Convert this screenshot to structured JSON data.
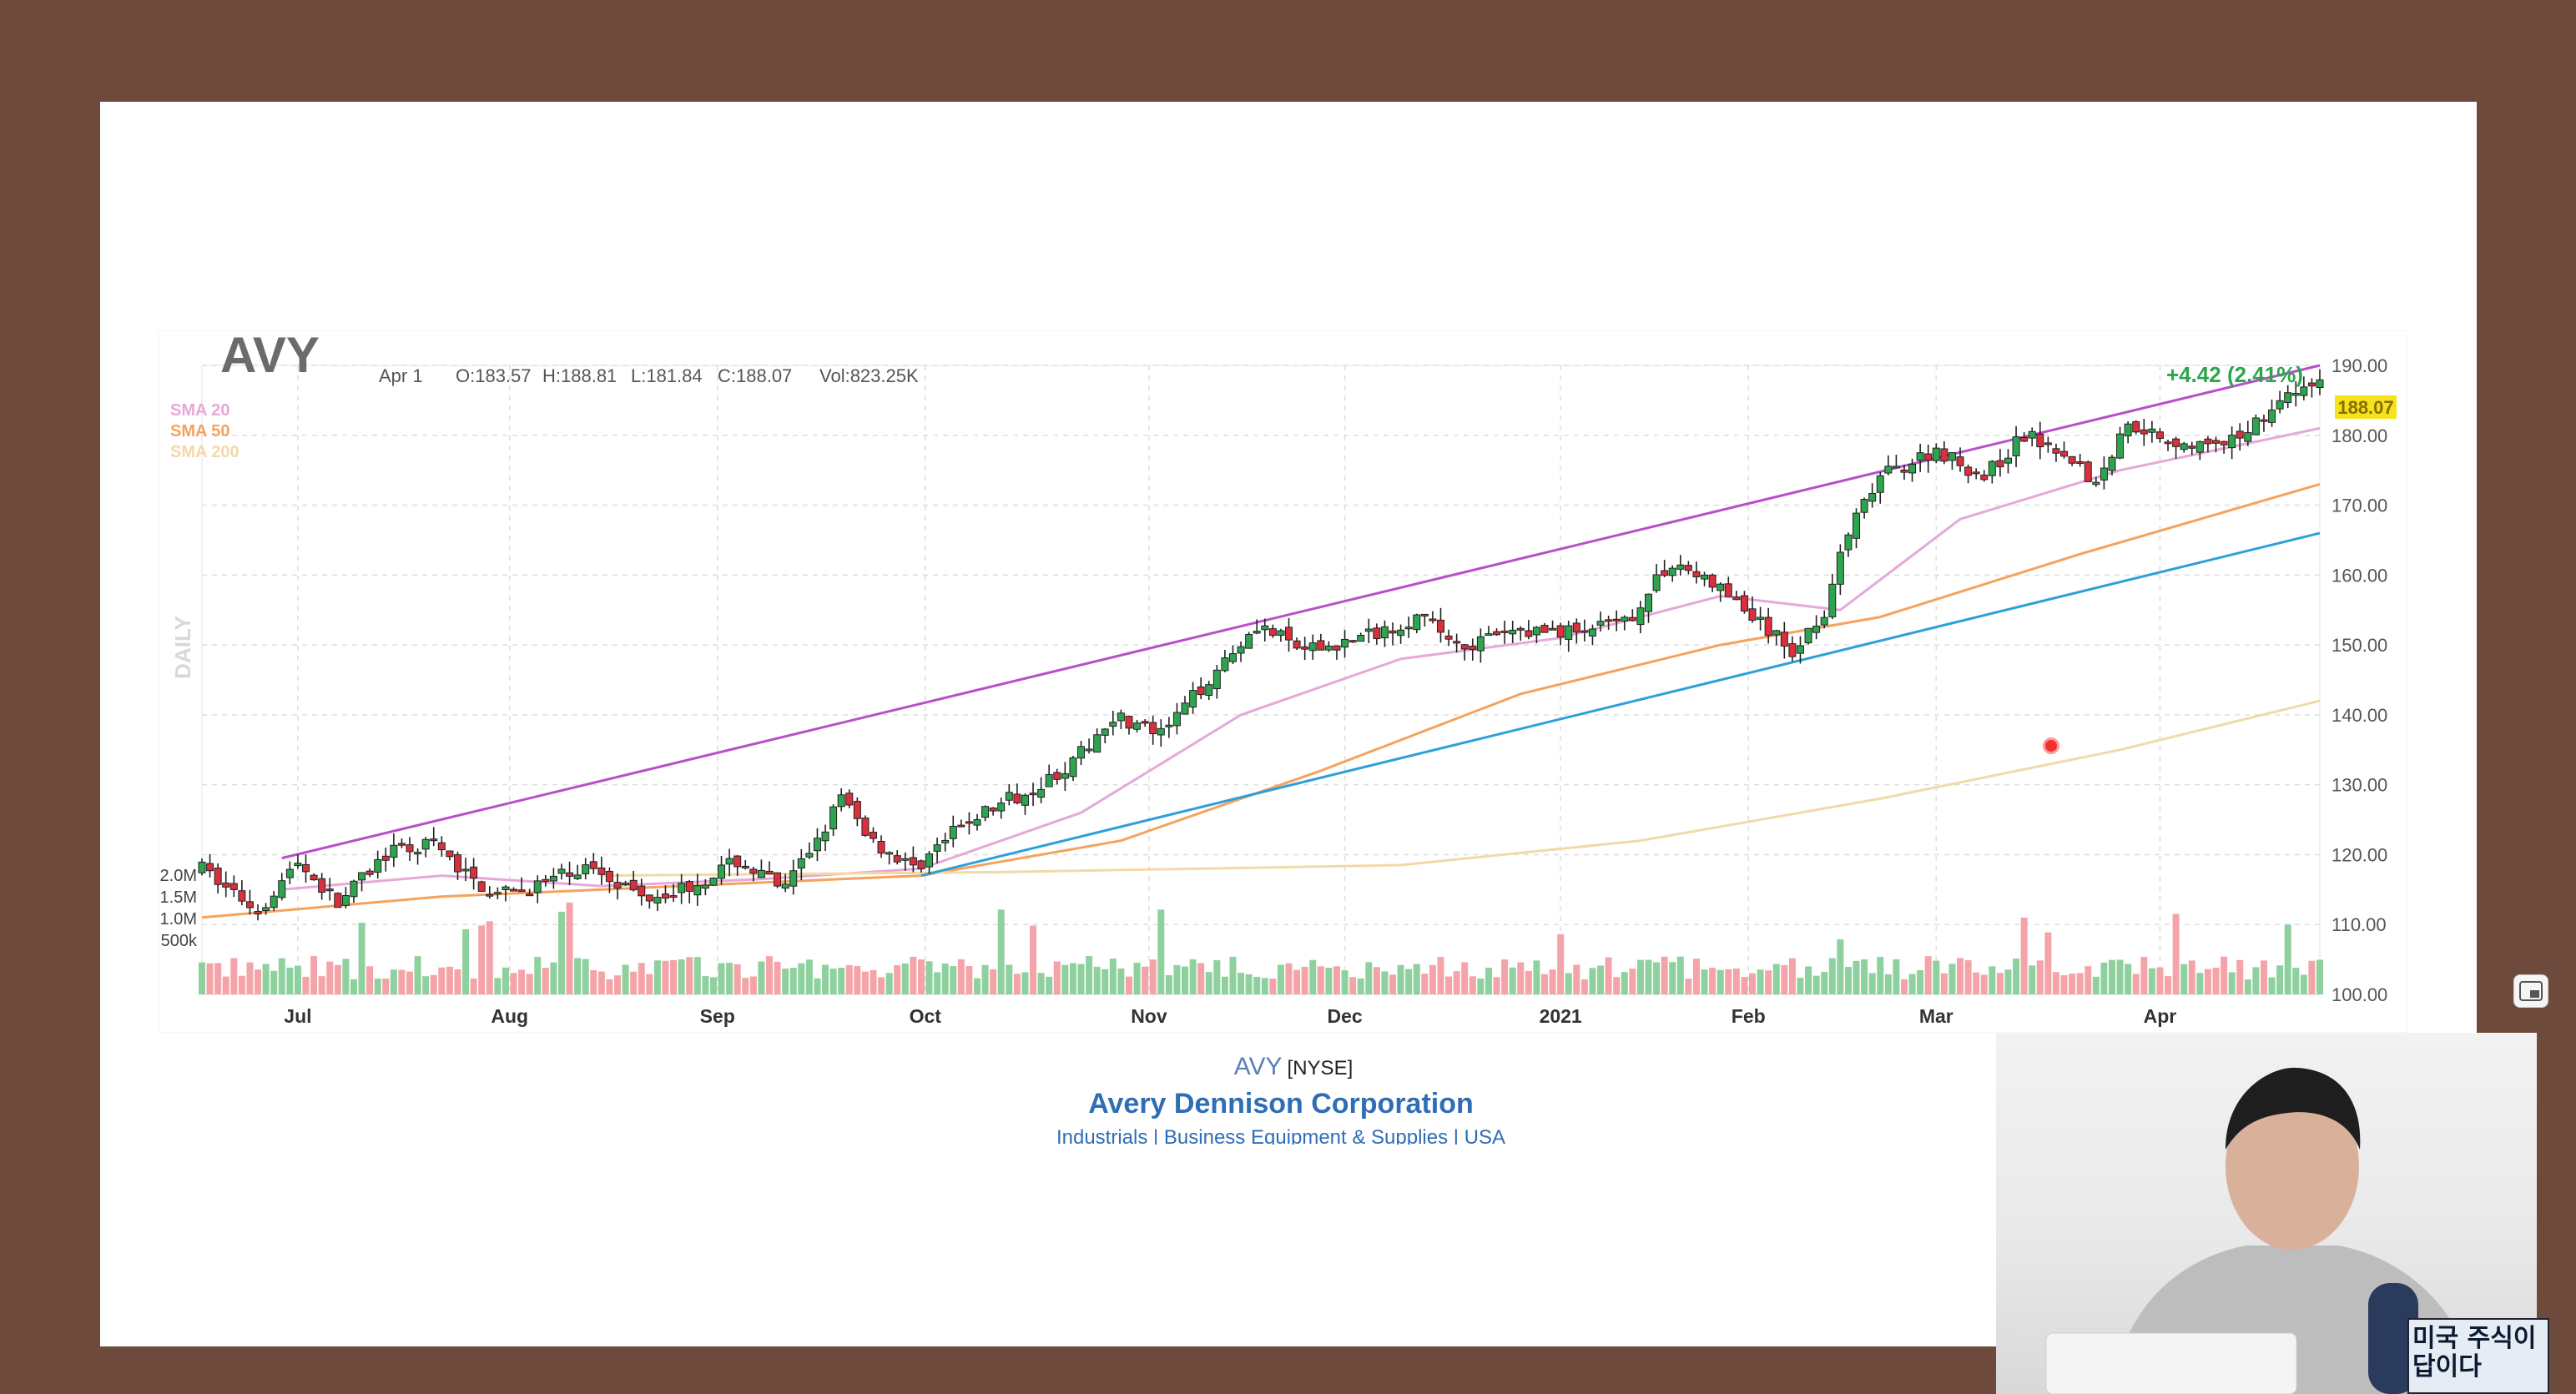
{
  "header": {
    "symbol": "AVY",
    "date": "Apr 1",
    "open": "O:183.57",
    "high": "H:188.81",
    "low": "L:181.84",
    "close": "C:188.07",
    "volume": "Vol:823.25K",
    "change": "+4.42 (2.41%)",
    "last_price_label": "188.07",
    "timeframe": "DAILY"
  },
  "legend": [
    {
      "label": "SMA 20",
      "color": "#e6a8d8"
    },
    {
      "label": "SMA 50",
      "color": "#f4a35d"
    },
    {
      "label": "SMA 200",
      "color": "#f2d9a8"
    }
  ],
  "footer": {
    "symbol": "AVY",
    "exchange": "[NYSE]",
    "company": "Avery Dennison Corporation",
    "sector": "Industrials | Business Equipment & Supplies | USA"
  },
  "overlay": {
    "book_title": "미국 주식이 답이다"
  },
  "colors": {
    "up": "#2ea44f",
    "down": "#d9303c",
    "vol_up": "#8fd19e",
    "vol_down": "#f4a4a8",
    "upper_trendline": "#b84fc8",
    "lower_trendline": "#2d9fd9",
    "price_highlight": "#f3e21c"
  },
  "chart_data": {
    "type": "candlestick",
    "title": "AVY",
    "y_axis": {
      "min": 100,
      "max": 190,
      "ticks": [
        "190.00",
        "180.00",
        "170.00",
        "160.00",
        "150.00",
        "140.00",
        "130.00",
        "120.00",
        "110.00",
        "100.00"
      ],
      "side": "right"
    },
    "volume_axis": {
      "ticks": [
        "2.0M",
        "1.5M",
        "1.0M",
        "500k"
      ],
      "side": "left"
    },
    "x_axis": {
      "labels": [
        "Jul",
        "Aug",
        "Sep",
        "Oct",
        "Nov",
        "Dec",
        "2021",
        "Feb",
        "Mar",
        "Apr"
      ]
    },
    "grid": true,
    "price_path": [
      {
        "t": 0,
        "p": 118
      },
      {
        "t": 14,
        "p": 112
      },
      {
        "t": 24,
        "p": 119
      },
      {
        "t": 34,
        "p": 113
      },
      {
        "t": 46,
        "p": 120
      },
      {
        "t": 58,
        "p": 121.5
      },
      {
        "t": 64,
        "p": 118
      },
      {
        "t": 74,
        "p": 114
      },
      {
        "t": 86,
        "p": 116
      },
      {
        "t": 98,
        "p": 118.5
      },
      {
        "t": 110,
        "p": 114
      },
      {
        "t": 122,
        "p": 115.5
      },
      {
        "t": 134,
        "p": 119
      },
      {
        "t": 146,
        "p": 115
      },
      {
        "t": 160,
        "p": 128
      },
      {
        "t": 168,
        "p": 122
      },
      {
        "t": 178,
        "p": 118
      },
      {
        "t": 192,
        "p": 125
      },
      {
        "t": 206,
        "p": 129
      },
      {
        "t": 218,
        "p": 133
      },
      {
        "t": 228,
        "p": 140
      },
      {
        "t": 240,
        "p": 137
      },
      {
        "t": 256,
        "p": 148
      },
      {
        "t": 264,
        "p": 153
      },
      {
        "t": 276,
        "p": 149
      },
      {
        "t": 290,
        "p": 151
      },
      {
        "t": 304,
        "p": 154
      },
      {
        "t": 316,
        "p": 150
      },
      {
        "t": 330,
        "p": 152
      },
      {
        "t": 344,
        "p": 152
      },
      {
        "t": 356,
        "p": 153
      },
      {
        "t": 368,
        "p": 162
      },
      {
        "t": 380,
        "p": 158
      },
      {
        "t": 390,
        "p": 153
      },
      {
        "t": 398,
        "p": 149
      },
      {
        "t": 406,
        "p": 155
      },
      {
        "t": 412,
        "p": 166
      },
      {
        "t": 420,
        "p": 174
      },
      {
        "t": 434,
        "p": 178
      },
      {
        "t": 446,
        "p": 174
      },
      {
        "t": 456,
        "p": 180
      },
      {
        "t": 466,
        "p": 178
      },
      {
        "t": 474,
        "p": 173
      },
      {
        "t": 482,
        "p": 182
      },
      {
        "t": 494,
        "p": 179
      },
      {
        "t": 506,
        "p": 178
      },
      {
        "t": 518,
        "p": 184
      },
      {
        "t": 530,
        "p": 188
      }
    ],
    "moving_averages": [
      {
        "name": "SMA 20",
        "points": [
          {
            "t": 20,
            "p": 115
          },
          {
            "t": 60,
            "p": 117
          },
          {
            "t": 100,
            "p": 115.5
          },
          {
            "t": 140,
            "p": 116.5
          },
          {
            "t": 180,
            "p": 118
          },
          {
            "t": 220,
            "p": 126
          },
          {
            "t": 260,
            "p": 140
          },
          {
            "t": 300,
            "p": 148
          },
          {
            "t": 340,
            "p": 151
          },
          {
            "t": 380,
            "p": 157
          },
          {
            "t": 410,
            "p": 155
          },
          {
            "t": 440,
            "p": 168
          },
          {
            "t": 480,
            "p": 175
          },
          {
            "t": 530,
            "p": 181
          }
        ]
      },
      {
        "name": "SMA 50",
        "points": [
          {
            "t": 0,
            "p": 111
          },
          {
            "t": 60,
            "p": 114
          },
          {
            "t": 120,
            "p": 115.5
          },
          {
            "t": 180,
            "p": 117
          },
          {
            "t": 230,
            "p": 122
          },
          {
            "t": 280,
            "p": 132
          },
          {
            "t": 330,
            "p": 143
          },
          {
            "t": 380,
            "p": 150
          },
          {
            "t": 420,
            "p": 154
          },
          {
            "t": 470,
            "p": 163
          },
          {
            "t": 530,
            "p": 173
          }
        ]
      },
      {
        "name": "SMA 200",
        "points": [
          {
            "t": 100,
            "p": 117
          },
          {
            "t": 200,
            "p": 117.5
          },
          {
            "t": 300,
            "p": 118.5
          },
          {
            "t": 360,
            "p": 122
          },
          {
            "t": 420,
            "p": 128
          },
          {
            "t": 480,
            "p": 135
          },
          {
            "t": 530,
            "p": 142
          }
        ]
      }
    ],
    "trendlines": [
      {
        "name": "upper",
        "from": {
          "t": 20,
          "p": 119.5
        },
        "to": {
          "t": 530,
          "p": 190
        }
      },
      {
        "name": "lower",
        "from": {
          "t": 180,
          "p": 117
        },
        "to": {
          "t": 530,
          "p": 166
        }
      }
    ],
    "months": [
      {
        "label": "Jul",
        "t": 24
      },
      {
        "label": "Aug",
        "t": 77
      },
      {
        "label": "Sep",
        "t": 129
      },
      {
        "label": "Oct",
        "t": 181
      },
      {
        "label": "Nov",
        "t": 237
      },
      {
        "label": "Dec",
        "t": 286
      },
      {
        "label": "2021",
        "t": 340
      },
      {
        "label": "Feb",
        "t": 387
      },
      {
        "label": "Mar",
        "t": 434
      },
      {
        "label": "Apr",
        "t": 490
      }
    ]
  }
}
